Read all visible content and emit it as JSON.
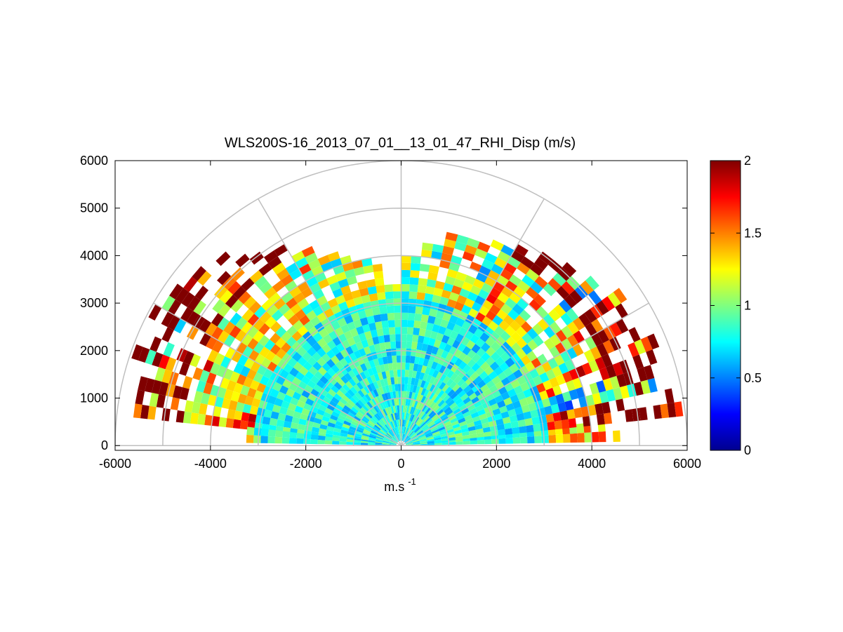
{
  "chart_data": {
    "type": "heatmap",
    "subtype": "polar-rhi-scan",
    "title": "WLS200S-16_2013_07_01__13_01_47_RHI_Disp (m/s)",
    "xlabel": "m.s",
    "xlabel_superscript": "-1",
    "ylabel": "",
    "xlim": [
      -6000,
      6000
    ],
    "ylim": [
      -100,
      6000
    ],
    "xticks": [
      "-6000",
      "-4000",
      "-2000",
      "0",
      "2000",
      "4000",
      "6000"
    ],
    "yticks": [
      "0",
      "1000",
      "2000",
      "3000",
      "4000",
      "5000",
      "6000"
    ],
    "polar_grid": {
      "range_rings": [
        1000,
        2000,
        3000,
        4000,
        5000,
        6000
      ],
      "spokes_deg": [
        0,
        30,
        60,
        90,
        120,
        150,
        180
      ]
    },
    "colorbar": {
      "colormap": "jet",
      "range": [
        0,
        2
      ],
      "ticks": [
        "0",
        "0.5",
        "1",
        "1.5",
        "2"
      ]
    },
    "scan": {
      "max_range": 6000,
      "beams": [
        {
          "angle_deg": 4,
          "data_range": 4600,
          "level": 1.1
        },
        {
          "angle_deg": 9,
          "data_range": 5900,
          "level": 1.6
        },
        {
          "angle_deg": 15,
          "data_range": 5500,
          "level": 0.6
        },
        {
          "angle_deg": 21,
          "data_range": 5800,
          "level": 1.3
        },
        {
          "angle_deg": 27,
          "data_range": 5500,
          "level": 0.9
        },
        {
          "angle_deg": 33,
          "data_range": 5600,
          "level": 1.2
        },
        {
          "angle_deg": 39,
          "data_range": 5300,
          "level": 0.8
        },
        {
          "angle_deg": 45,
          "data_range": 5200,
          "level": 1.1
        },
        {
          "angle_deg": 51,
          "data_range": 5000,
          "level": 0.9
        },
        {
          "angle_deg": 57,
          "data_range": 4900,
          "level": 1.2
        },
        {
          "angle_deg": 63,
          "data_range": 4700,
          "level": 0.8
        },
        {
          "angle_deg": 69,
          "data_range": 4600,
          "level": 1.1
        },
        {
          "angle_deg": 75,
          "data_range": 4500,
          "level": 1.0
        },
        {
          "angle_deg": 81,
          "data_range": 4300,
          "level": 0.9
        },
        {
          "angle_deg": 87,
          "data_range": 3900,
          "level": 0.8
        },
        {
          "angle_deg": 93,
          "data_range": 3400,
          "level": 0.8
        },
        {
          "angle_deg": 99,
          "data_range": 4000,
          "level": 0.9
        },
        {
          "angle_deg": 105,
          "data_range": 4100,
          "level": 1.0
        },
        {
          "angle_deg": 111,
          "data_range": 4300,
          "level": 0.9
        },
        {
          "angle_deg": 117,
          "data_range": 4600,
          "level": 1.0
        },
        {
          "angle_deg": 123,
          "data_range": 4900,
          "level": 0.9
        },
        {
          "angle_deg": 129,
          "data_range": 5200,
          "level": 1.1
        },
        {
          "angle_deg": 135,
          "data_range": 5400,
          "level": 0.9
        },
        {
          "angle_deg": 141,
          "data_range": 5600,
          "level": 1.0
        },
        {
          "angle_deg": 147,
          "data_range": 5800,
          "level": 1.1
        },
        {
          "angle_deg": 153,
          "data_range": 5900,
          "level": 0.9
        },
        {
          "angle_deg": 159,
          "data_range": 5900,
          "level": 1.2
        },
        {
          "angle_deg": 165,
          "data_range": 5800,
          "level": 0.9
        },
        {
          "angle_deg": 171,
          "data_range": 5600,
          "level": 1.4
        },
        {
          "angle_deg": 176,
          "data_range": 3200,
          "level": 1.0
        }
      ]
    }
  }
}
